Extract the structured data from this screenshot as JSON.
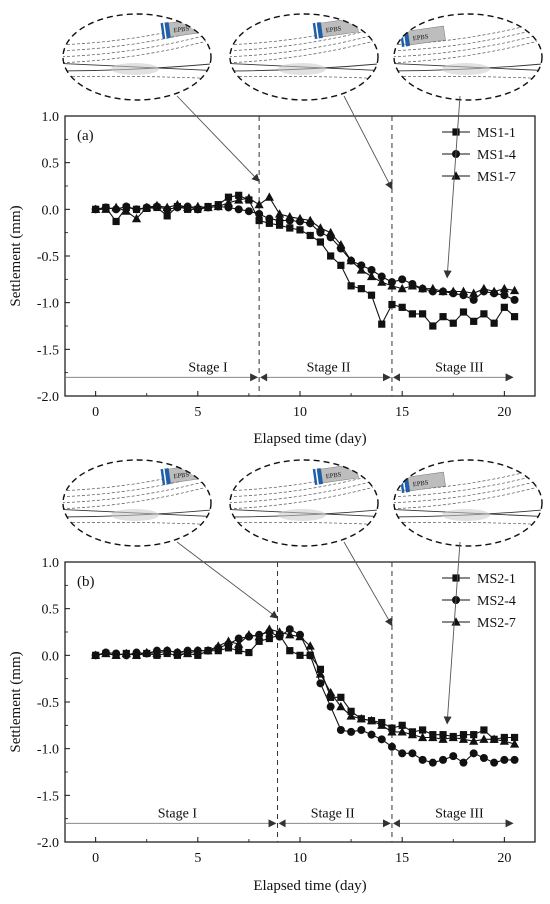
{
  "chart_data": [
    {
      "type": "line",
      "panel_label": "(a)",
      "xlabel": "Elapsed time (day)",
      "ylabel": "Settlement (mm)",
      "xlim": [
        -1.5,
        21.5
      ],
      "ylim": [
        -2.0,
        1.0
      ],
      "xticks": [
        "0",
        "5",
        "10",
        "15",
        "20"
      ],
      "xtick_values": [
        0,
        5,
        10,
        15,
        20
      ],
      "yticks": [
        "1.0",
        "0.5",
        "0.0",
        "-0.5",
        "-1.0",
        "-1.5",
        "-2.0"
      ],
      "ytick_values": [
        1.0,
        0.5,
        0.0,
        -0.5,
        -1.0,
        -1.5,
        -2.0
      ],
      "legend_position": "top-right",
      "stage_boundaries": [
        8.0,
        14.5
      ],
      "stage_labels": [
        "Stage I",
        "Stage II",
        "Stage III"
      ],
      "stage_label_x": [
        5.5,
        11.4,
        17.8
      ],
      "stage_arrow_y": -1.8,
      "callout_tbm_label": "EPBS",
      "callout_targets": [
        {
          "x": 8.0,
          "y": 0.3
        },
        {
          "x": 14.5,
          "y": 0.22
        },
        {
          "x": 17.2,
          "y": -0.73
        }
      ],
      "callout_shield_position": [
        0.72,
        0.62,
        0.1
      ],
      "series": [
        {
          "name": "MS1-1",
          "marker": "square",
          "x": [
            0,
            0.5,
            1,
            1.5,
            2,
            2.5,
            3,
            3.5,
            4,
            4.5,
            5,
            5.5,
            6,
            6.5,
            7,
            7.5,
            8,
            8.5,
            9,
            9.5,
            10,
            10.5,
            11,
            11.5,
            12,
            12.5,
            13,
            13.5,
            14,
            14.5,
            15,
            15.5,
            16,
            16.5,
            17,
            17.5,
            18,
            18.5,
            19,
            19.5,
            20,
            20.5
          ],
          "y": [
            0.0,
            0.02,
            -0.13,
            0.02,
            0.0,
            0.01,
            0.02,
            -0.07,
            0.03,
            0.0,
            0.0,
            0.03,
            0.05,
            0.13,
            0.15,
            0.1,
            -0.12,
            -0.15,
            -0.17,
            -0.2,
            -0.22,
            -0.28,
            -0.35,
            -0.5,
            -0.6,
            -0.82,
            -0.85,
            -0.92,
            -1.23,
            -1.02,
            -1.05,
            -1.12,
            -1.12,
            -1.25,
            -1.15,
            -1.22,
            -1.1,
            -1.2,
            -1.12,
            -1.22,
            -1.05,
            -1.15
          ]
        },
        {
          "name": "MS1-4",
          "marker": "circle",
          "x": [
            0,
            0.5,
            1,
            1.5,
            2,
            2.5,
            3,
            3.5,
            4,
            4.5,
            5,
            5.5,
            6,
            6.5,
            7,
            7.5,
            8,
            8.5,
            9,
            9.5,
            10,
            10.5,
            11,
            11.5,
            12,
            12.5,
            13,
            13.5,
            14,
            14.5,
            15,
            15.5,
            16,
            16.5,
            17,
            17.5,
            18,
            18.5,
            19,
            19.5,
            20,
            20.5
          ],
          "y": [
            0.0,
            0.02,
            0.0,
            0.03,
            0.0,
            0.02,
            0.03,
            0.0,
            0.02,
            0.03,
            0.0,
            0.02,
            0.03,
            0.02,
            0.0,
            -0.02,
            -0.05,
            -0.1,
            -0.12,
            -0.12,
            -0.13,
            -0.15,
            -0.25,
            -0.3,
            -0.42,
            -0.55,
            -0.6,
            -0.65,
            -0.72,
            -0.78,
            -0.75,
            -0.8,
            -0.85,
            -0.88,
            -0.88,
            -0.9,
            -0.92,
            -0.97,
            -0.88,
            -0.9,
            -0.92,
            -0.97
          ]
        },
        {
          "name": "MS1-7",
          "marker": "triangle",
          "x": [
            0,
            0.5,
            1,
            1.5,
            2,
            2.5,
            3,
            3.5,
            4,
            4.5,
            5,
            5.5,
            6,
            6.5,
            7,
            7.5,
            8,
            8.5,
            9,
            9.5,
            10,
            10.5,
            11,
            11.5,
            12,
            12.5,
            13,
            13.5,
            14,
            14.5,
            15,
            15.5,
            16,
            16.5,
            17,
            17.5,
            18,
            18.5,
            19,
            19.5,
            20,
            20.5
          ],
          "y": [
            0.0,
            0.0,
            0.02,
            -0.02,
            -0.1,
            0.02,
            0.04,
            0.02,
            0.05,
            0.02,
            0.03,
            0.02,
            0.03,
            0.07,
            0.1,
            0.12,
            0.05,
            0.13,
            -0.05,
            -0.08,
            -0.1,
            -0.12,
            -0.2,
            -0.25,
            -0.38,
            -0.55,
            -0.65,
            -0.72,
            -0.78,
            -0.82,
            -0.85,
            -0.82,
            -0.85,
            -0.85,
            -0.88,
            -0.88,
            -0.88,
            -0.9,
            -0.85,
            -0.88,
            -0.85,
            -0.87
          ]
        }
      ]
    },
    {
      "type": "line",
      "panel_label": "(b)",
      "xlabel": "Elapsed time (day)",
      "ylabel": "Settlement (mm)",
      "xlim": [
        -1.5,
        21.5
      ],
      "ylim": [
        -2.0,
        1.0
      ],
      "xticks": [
        "0",
        "5",
        "10",
        "15",
        "20"
      ],
      "xtick_values": [
        0,
        5,
        10,
        15,
        20
      ],
      "yticks": [
        "1.0",
        "0.5",
        "0.0",
        "-0.5",
        "-1.0",
        "-1.5",
        "-2.0"
      ],
      "ytick_values": [
        1.0,
        0.5,
        0.0,
        -0.5,
        -1.0,
        -1.5,
        -2.0
      ],
      "legend_position": "top-right",
      "stage_boundaries": [
        8.9,
        14.5
      ],
      "stage_labels": [
        "Stage I",
        "Stage II",
        "Stage III"
      ],
      "stage_label_x": [
        4.0,
        11.6,
        17.8
      ],
      "stage_arrow_y": -1.8,
      "callout_tbm_label": "EPBS",
      "callout_targets": [
        {
          "x": 8.9,
          "y": 0.4
        },
        {
          "x": 14.5,
          "y": 0.32
        },
        {
          "x": 17.2,
          "y": -0.73
        }
      ],
      "callout_shield_position": [
        0.72,
        0.62,
        0.1
      ],
      "series": [
        {
          "name": "MS2-1",
          "marker": "square",
          "x": [
            0,
            0.5,
            1,
            1.5,
            2,
            2.5,
            3,
            3.5,
            4,
            4.5,
            5,
            5.5,
            6,
            6.5,
            7,
            7.5,
            8,
            8.5,
            9,
            9.5,
            10,
            10.5,
            11,
            11.5,
            12,
            12.5,
            13,
            13.5,
            14,
            14.5,
            15,
            15.5,
            16,
            16.5,
            17,
            17.5,
            18,
            18.5,
            19,
            19.5,
            20,
            20.5
          ],
          "y": [
            0.0,
            0.02,
            0.0,
            0.02,
            0.0,
            0.02,
            0.0,
            0.02,
            0.0,
            0.02,
            0.0,
            0.05,
            0.05,
            0.08,
            0.05,
            0.03,
            0.15,
            0.18,
            0.22,
            0.05,
            0.0,
            0.0,
            -0.15,
            -0.45,
            -0.45,
            -0.6,
            -0.68,
            -0.7,
            -0.72,
            -0.78,
            -0.75,
            -0.82,
            -0.8,
            -0.85,
            -0.85,
            -0.87,
            -0.85,
            -0.85,
            -0.8,
            -0.9,
            -0.88,
            -0.88
          ]
        },
        {
          "name": "MS2-4",
          "marker": "circle",
          "x": [
            0,
            0.5,
            1,
            1.5,
            2,
            2.5,
            3,
            3.5,
            4,
            4.5,
            5,
            5.5,
            6,
            6.5,
            7,
            7.5,
            8,
            8.5,
            9,
            9.5,
            10,
            10.5,
            11,
            11.5,
            12,
            12.5,
            13,
            13.5,
            14,
            14.5,
            15,
            15.5,
            16,
            16.5,
            17,
            17.5,
            18,
            18.5,
            19,
            19.5,
            20,
            20.5
          ],
          "y": [
            0.0,
            0.03,
            0.02,
            0.0,
            0.03,
            0.02,
            0.05,
            0.05,
            0.03,
            0.05,
            0.05,
            0.05,
            0.08,
            0.12,
            0.18,
            0.2,
            0.22,
            0.25,
            0.2,
            0.28,
            0.22,
            0.0,
            -0.3,
            -0.55,
            -0.8,
            -0.82,
            -0.8,
            -0.85,
            -0.9,
            -0.98,
            -1.05,
            -1.05,
            -1.12,
            -1.15,
            -1.12,
            -1.08,
            -1.15,
            -1.05,
            -1.1,
            -1.15,
            -1.12,
            -1.12
          ]
        },
        {
          "name": "MS2-7",
          "marker": "triangle",
          "x": [
            0,
            0.5,
            1,
            1.5,
            2,
            2.5,
            3,
            3.5,
            4,
            4.5,
            5,
            5.5,
            6,
            6.5,
            7,
            7.5,
            8,
            8.5,
            9,
            9.5,
            10,
            10.5,
            11,
            11.5,
            12,
            12.5,
            13,
            13.5,
            14,
            14.5,
            15,
            15.5,
            16,
            16.5,
            17,
            17.5,
            18,
            18.5,
            19,
            19.5,
            20,
            20.5
          ],
          "y": [
            0.0,
            0.02,
            0.0,
            0.02,
            0.0,
            0.03,
            0.02,
            0.05,
            0.03,
            0.02,
            0.05,
            0.05,
            0.1,
            0.15,
            0.12,
            0.22,
            0.2,
            0.28,
            0.25,
            0.22,
            0.2,
            0.1,
            -0.2,
            -0.4,
            -0.55,
            -0.65,
            -0.68,
            -0.7,
            -0.75,
            -0.82,
            -0.82,
            -0.85,
            -0.88,
            -0.88,
            -0.9,
            -0.88,
            -0.9,
            -0.92,
            -0.9,
            -0.9,
            -0.92,
            -0.95
          ]
        }
      ]
    }
  ]
}
